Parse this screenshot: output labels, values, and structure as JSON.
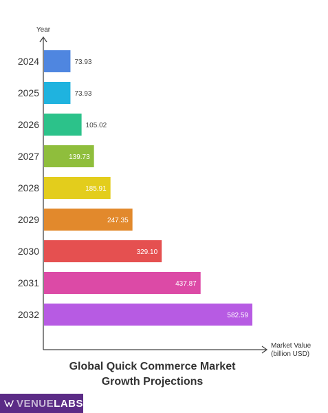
{
  "chart_data": {
    "type": "bar",
    "orientation": "horizontal",
    "title_line1": "Global Quick Commerce Market",
    "title_line2": "Growth Projections",
    "ylabel": "Year",
    "xlabel_line1": "Market Value",
    "xlabel_line2": "(billion USD)",
    "categories": [
      "2024",
      "2025",
      "2026",
      "2027",
      "2028",
      "2029",
      "2030",
      "2031",
      "2032"
    ],
    "values": [
      73.93,
      73.93,
      105.02,
      139.73,
      185.91,
      247.35,
      329.1,
      437.87,
      582.59
    ],
    "labels": [
      "73.93",
      "73.93",
      "105.02",
      "139.73",
      "185.91",
      "247.35",
      "329.10",
      "437.87",
      "582.59"
    ],
    "colors": [
      "#4f86e0",
      "#1fb3df",
      "#2cc28a",
      "#8fbe3c",
      "#e3cd1c",
      "#e2892c",
      "#e55050",
      "#dc4aa6",
      "#b75be3"
    ],
    "xlim": [
      0,
      582.59
    ],
    "grid": false,
    "legend": "none"
  },
  "brand": {
    "part1": "VENUE",
    "part2": "LABS"
  }
}
